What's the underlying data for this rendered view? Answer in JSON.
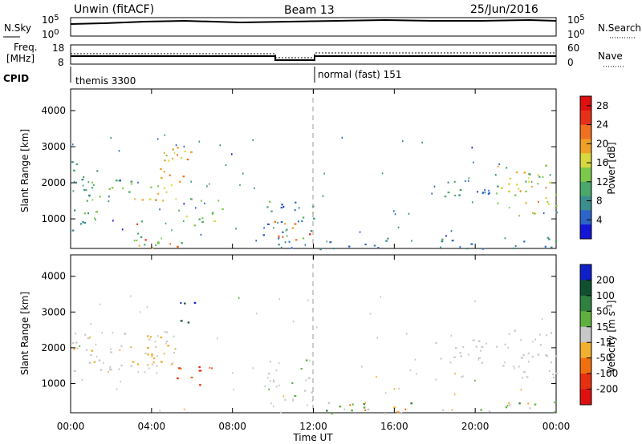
{
  "header": {
    "station": "Unwin (fitACF)",
    "beam": "Beam 13",
    "date": "25/Jun/2016"
  },
  "noise_panel": {
    "left_label": "N.Sky",
    "right_label": "N.Search",
    "left_ticks": [
      "10^5",
      "10^0"
    ],
    "right_ticks": [
      "10^5",
      "10^0"
    ]
  },
  "freq_panel": {
    "left_label_1": "Freq.",
    "left_label_2": "[MHz]",
    "right_label": "Nave",
    "left_ticks": [
      "18",
      "8"
    ],
    "right_ticks": [
      "60",
      "0"
    ]
  },
  "cpid_panel": {
    "label": "CPID",
    "programs": [
      {
        "name": "themis 3300",
        "start_hour": 0
      },
      {
        "name": "normal (fast) 151",
        "start_hour": 12
      }
    ]
  },
  "x_axis": {
    "title": "Time UT",
    "ticks": [
      "00:00",
      "04:00",
      "08:00",
      "12:00",
      "16:00",
      "20:00",
      "00:00"
    ]
  },
  "chart_data": [
    {
      "type": "heatmap",
      "name": "power",
      "ylabel": "Slant Range [km]",
      "yticks": [
        "1000",
        "2000",
        "3000",
        "4000"
      ],
      "xlim": [
        0,
        24
      ],
      "ylim": [
        180,
        4600
      ],
      "colorbar": {
        "label": "Power [dB]",
        "ticks": [
          "4",
          "8",
          "12",
          "16",
          "20",
          "24",
          "28"
        ],
        "colors": [
          "#1515d8",
          "#2c64c8",
          "#3b8e8e",
          "#4ca86a",
          "#7cc84a",
          "#d8d840",
          "#f0a028",
          "#f07020",
          "#e83018",
          "#e01010"
        ]
      },
      "regions": [
        {
          "t": [
            0.0,
            1.3
          ],
          "r": [
            600,
            2600
          ],
          "v": [
            6,
            14
          ]
        },
        {
          "t": [
            0.0,
            1.8
          ],
          "r": [
            1500,
            2200
          ],
          "v": [
            8,
            14
          ]
        },
        {
          "t": [
            1.8,
            3.5
          ],
          "r": [
            1400,
            2100
          ],
          "v": [
            8,
            14
          ]
        },
        {
          "t": [
            3.0,
            5.0
          ],
          "r": [
            1500,
            2500
          ],
          "v": [
            14,
            24
          ]
        },
        {
          "t": [
            4.5,
            6.0
          ],
          "r": [
            1800,
            3100
          ],
          "v": [
            14,
            24
          ]
        },
        {
          "t": [
            3.0,
            6.0
          ],
          "r": [
            180,
            1000
          ],
          "v": [
            10,
            26
          ]
        },
        {
          "t": [
            5.0,
            7.5
          ],
          "r": [
            800,
            1600
          ],
          "v": [
            10,
            18
          ]
        },
        {
          "t": [
            9.5,
            12.0
          ],
          "r": [
            400,
            1700
          ],
          "v": [
            4,
            14
          ]
        },
        {
          "t": [
            10.0,
            12.0
          ],
          "r": [
            400,
            1000
          ],
          "v": [
            18,
            28
          ]
        },
        {
          "t": [
            10.0,
            24.0
          ],
          "r": [
            180,
            500
          ],
          "v": [
            4,
            10
          ]
        },
        {
          "t": [
            18.0,
            21.5
          ],
          "r": [
            1600,
            2300
          ],
          "v": [
            4,
            12
          ]
        },
        {
          "t": [
            21.0,
            24.0
          ],
          "r": [
            1100,
            2500
          ],
          "v": [
            8,
            20
          ]
        },
        {
          "t": [
            21.5,
            24.0
          ],
          "r": [
            1400,
            2000
          ],
          "v": [
            14,
            24
          ]
        }
      ]
    },
    {
      "type": "heatmap",
      "name": "velocity",
      "ylabel": "Slant Range [km]",
      "yticks": [
        "1000",
        "2000",
        "3000",
        "4000"
      ],
      "xlim": [
        0,
        24
      ],
      "ylim": [
        180,
        4600
      ],
      "colorbar": {
        "label": "Velocity [m s^-1]",
        "ticks": [
          "200",
          "100",
          "50",
          "15",
          "-15",
          "-50",
          "-100",
          "-200"
        ],
        "colors": [
          "#1020c8",
          "#105030",
          "#308040",
          "#60b040",
          "#c8c8c8",
          "#f0b030",
          "#f07010",
          "#e83010",
          "#e01010"
        ]
      },
      "regions": [
        {
          "t": [
            0.0,
            5.5
          ],
          "r": [
            1300,
            2500
          ],
          "v": [
            -20,
            10
          ]
        },
        {
          "t": [
            3.0,
            5.0
          ],
          "r": [
            1500,
            2400
          ],
          "v": [
            -40,
            -10
          ]
        },
        {
          "t": [
            5.2,
            6.2
          ],
          "r": [
            2700,
            3300
          ],
          "v": [
            150,
            220
          ]
        },
        {
          "t": [
            5.0,
            7.0
          ],
          "r": [
            900,
            1500
          ],
          "v": [
            -200,
            -80
          ]
        },
        {
          "t": [
            9.5,
            12.0
          ],
          "r": [
            400,
            1700
          ],
          "v": [
            -10,
            20
          ]
        },
        {
          "t": [
            10.0,
            24.0
          ],
          "r": [
            180,
            500
          ],
          "v": [
            -60,
            60
          ]
        },
        {
          "t": [
            18.0,
            21.5
          ],
          "r": [
            1600,
            2300
          ],
          "v": [
            -15,
            15
          ]
        },
        {
          "t": [
            21.0,
            24.0
          ],
          "r": [
            1100,
            2500
          ],
          "v": [
            -15,
            15
          ]
        }
      ]
    }
  ]
}
